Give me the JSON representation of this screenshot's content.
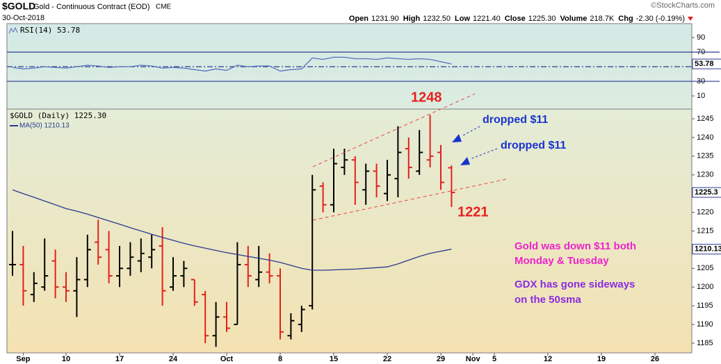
{
  "header": {
    "symbol": "$GOLD",
    "description": "Gold - Continuous Contract (EOD)",
    "exchange": "CME",
    "date": "30-Oct-2018",
    "copyright": "©StockCharts.com",
    "quote": [
      {
        "label": "Open",
        "value": "1231.90"
      },
      {
        "label": "High",
        "value": "1232.50"
      },
      {
        "label": "Low",
        "value": "1221.40"
      },
      {
        "label": "Close",
        "value": "1225.30"
      },
      {
        "label": "Volume",
        "value": "218.7K"
      },
      {
        "label": "Chg",
        "value": "-2.30 (-0.19%)"
      }
    ]
  },
  "chart_data": [
    {
      "type": "line",
      "series": [
        {
          "name": "RSI(14) 53.78",
          "color": "#5a6fc0",
          "values": [
            49,
            47,
            48,
            50,
            49,
            48,
            50,
            52,
            51,
            49,
            50,
            50,
            52,
            51,
            48,
            49,
            48,
            46,
            44,
            47,
            45,
            52,
            50,
            51,
            51,
            44,
            46,
            47,
            62,
            60,
            63,
            63,
            61,
            61,
            60,
            62,
            61,
            60,
            61,
            60,
            57,
            53.78,
            null,
            null,
            null,
            null,
            null,
            null,
            null,
            null,
            null,
            null,
            null,
            null,
            null,
            null,
            null,
            null,
            null,
            null,
            null,
            null,
            null,
            null
          ]
        }
      ],
      "reference_lines": [
        70,
        50,
        30
      ],
      "ylim": [
        -8,
        109
      ],
      "yticks": [
        10,
        30,
        70,
        90
      ]
    },
    {
      "type": "ohlc",
      "name": "$GOLD (Daily) 1225.30",
      "up_color": "#000000",
      "down_color": "#e3201b",
      "categories": [
        null,
        "Sep",
        null,
        null,
        null,
        "10",
        null,
        null,
        null,
        null,
        "17",
        null,
        null,
        null,
        null,
        "24",
        null,
        null,
        null,
        null,
        "Oct",
        null,
        null,
        null,
        null,
        "8",
        null,
        null,
        null,
        null,
        "15",
        null,
        null,
        null,
        null,
        "22",
        null,
        null,
        null,
        null,
        "29",
        null,
        null,
        "Nov",
        null,
        "5",
        null,
        null,
        null,
        null,
        "12",
        null,
        null,
        null,
        null,
        "19",
        null,
        null,
        null,
        null,
        "26",
        null,
        null,
        null
      ],
      "open": [
        1206,
        1206,
        1198,
        1200,
        1207,
        1200,
        1199,
        1202,
        1212,
        1210,
        1203,
        1205,
        1207,
        1208,
        1211,
        1200,
        1203,
        1202,
        1198,
        1187,
        1192,
        1190,
        1206,
        1202,
        1204,
        1203,
        1187,
        1190,
        1195,
        1227,
        1222,
        1232,
        1234,
        1226,
        1231,
        1225,
        1229,
        1237,
        1231,
        1234,
        1236,
        1231.9,
        null,
        null,
        null,
        null,
        null,
        null,
        null,
        null,
        null,
        null,
        null,
        null,
        null,
        null,
        null,
        null,
        null,
        null,
        null,
        null,
        null,
        null
      ],
      "high": [
        1215,
        1211,
        1204,
        1213,
        1210,
        1204,
        1208,
        1214,
        1218,
        1215,
        1211,
        1212,
        1213,
        1214,
        1216,
        1208,
        1207,
        1202,
        1199,
        1196,
        1196,
        1212,
        1211,
        1211,
        1209,
        1205,
        1193,
        1195,
        1230,
        1228,
        1237,
        1237,
        1235,
        1233,
        1233,
        1234,
        1243,
        1240,
        1242,
        1246,
        1238,
        1232.5,
        null,
        null,
        null,
        null,
        null,
        null,
        null,
        null,
        null,
        null,
        null,
        null,
        null,
        null,
        null,
        null,
        null,
        null,
        null,
        null,
        null,
        null
      ],
      "low": [
        1203,
        1195,
        1196,
        1199,
        1197,
        1196,
        1192,
        1200,
        1206,
        1201,
        1200,
        1203,
        1204,
        1205,
        1195,
        1199,
        1200,
        1195,
        1185,
        1184,
        1188,
        1190,
        1200,
        1200,
        1201,
        1186,
        1186,
        1188,
        1194,
        1220,
        1220,
        1230,
        1222,
        1222,
        1224,
        1223,
        1224,
        1229,
        1230,
        1232,
        1226,
        1221.4,
        null,
        null,
        null,
        null,
        null,
        null,
        null,
        null,
        null,
        null,
        null,
        null,
        null,
        null,
        null,
        null,
        null,
        null,
        null,
        null,
        null,
        null
      ],
      "close": [
        1206,
        1199,
        1201,
        1203,
        1200,
        1199,
        1202,
        1210,
        1208,
        1203,
        1205,
        1208,
        1209,
        1210,
        1199,
        1203,
        1205,
        1196,
        1187,
        1192,
        1189,
        1206,
        1203,
        1204,
        1203,
        1188,
        1191,
        1194,
        1226,
        1222,
        1233,
        1234,
        1228,
        1231,
        1227,
        1230,
        1236,
        1232,
        1236,
        1235,
        1228,
        1225.3,
        null,
        null,
        null,
        null,
        null,
        null,
        null,
        null,
        null,
        null,
        null,
        null,
        null,
        null,
        null,
        null,
        null,
        null,
        null,
        null,
        null,
        null
      ],
      "overlays": [
        {
          "name": "MA(50) 1210.13",
          "color": "#2b3990",
          "values": [
            1226,
            1225,
            1224,
            1223,
            1222,
            1221,
            1220.3,
            1219.5,
            1218.6,
            1217.7,
            1216.8,
            1215.9,
            1215,
            1214.1,
            1213.3,
            1212.5,
            1211.7,
            1211,
            1210.4,
            1209.8,
            1209.2,
            1208.7,
            1208.2,
            1207.7,
            1207.2,
            1206.6,
            1205.8,
            1205,
            1204.5,
            1204.5,
            1204.6,
            1204.7,
            1204.8,
            1205,
            1205.2,
            1205.4,
            1206.2,
            1207.2,
            1208.2,
            1209,
            1209.6,
            1210.13,
            null,
            null,
            null,
            null,
            null,
            null,
            null,
            null,
            null,
            null,
            null,
            null,
            null,
            null,
            null,
            null,
            null,
            null,
            null,
            null,
            null,
            null
          ]
        }
      ],
      "ylim": [
        1182.4,
        1247.6
      ],
      "yticks": [
        1185,
        1190,
        1195,
        1200,
        1205,
        1210,
        1215,
        1220,
        1225,
        1230,
        1235,
        1240,
        1245
      ],
      "annotations": [
        {
          "text": "1248"
        },
        {
          "text": "1221"
        },
        {
          "text": "dropped $11"
        },
        {
          "text": "dropped $11"
        },
        {
          "text": "Gold was down $11 both"
        },
        {
          "text": "Monday & Tuesday"
        },
        {
          "text": "GDX has gone sideways"
        },
        {
          "text": "on the 50sma"
        }
      ]
    }
  ]
}
